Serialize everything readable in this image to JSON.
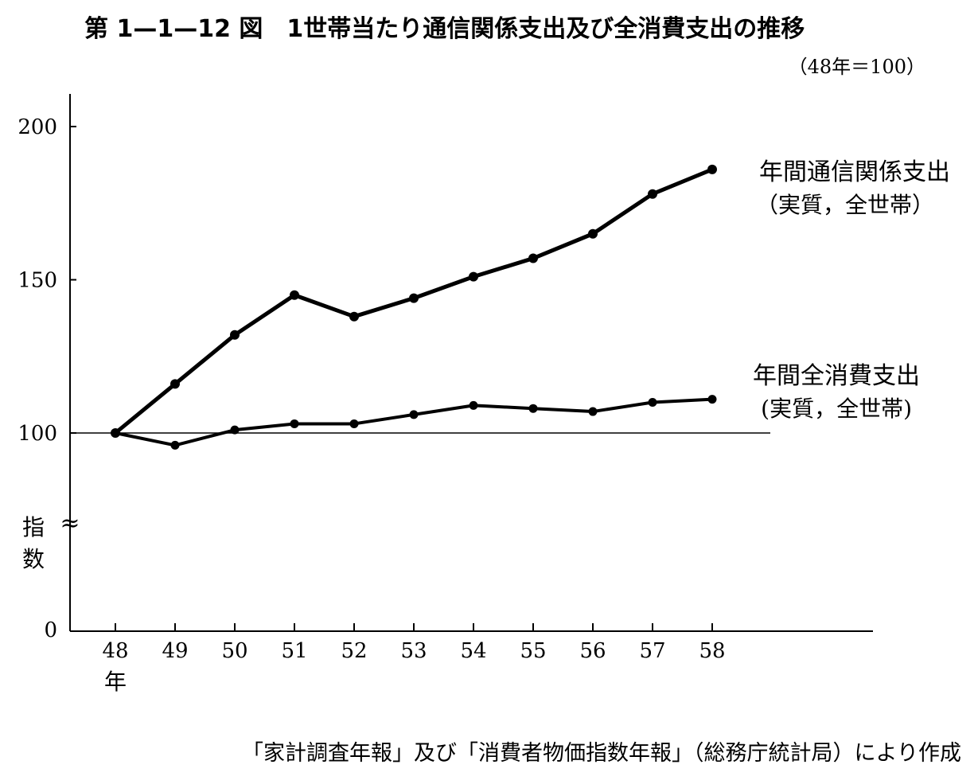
{
  "chart_data": {
    "type": "line",
    "title": "第 1—1—12 図　1世帯当たり通信関係支出及び全消費支出の推移",
    "subtitle": "（48年＝100）",
    "ylabel_line1": "指",
    "ylabel_line2": "数",
    "axis_break_symbol": "≈",
    "x_unit": "年",
    "categories": [
      "48",
      "49",
      "50",
      "51",
      "52",
      "53",
      "54",
      "55",
      "56",
      "57",
      "58"
    ],
    "y_ticks": [
      0,
      100,
      150,
      200
    ],
    "y_axis_break": true,
    "ylim": [
      90,
      210
    ],
    "baseline": 100,
    "series": [
      {
        "name": "年間通信関係支出",
        "name_line2": "（実質，全世帯）",
        "values": [
          100,
          116,
          132,
          145,
          138,
          144,
          151,
          157,
          165,
          178,
          186
        ]
      },
      {
        "name": "年間全消費支出",
        "name_line2": "(実質，全世帯)",
        "values": [
          100,
          96,
          101,
          103,
          103,
          106,
          109,
          108,
          107,
          110,
          111
        ]
      }
    ],
    "source": "「家計調査年報」及び「消費者物価指数年報」（総務庁統計局）により作成",
    "colors": {
      "line": "#000000",
      "background": "#ffffff"
    }
  }
}
